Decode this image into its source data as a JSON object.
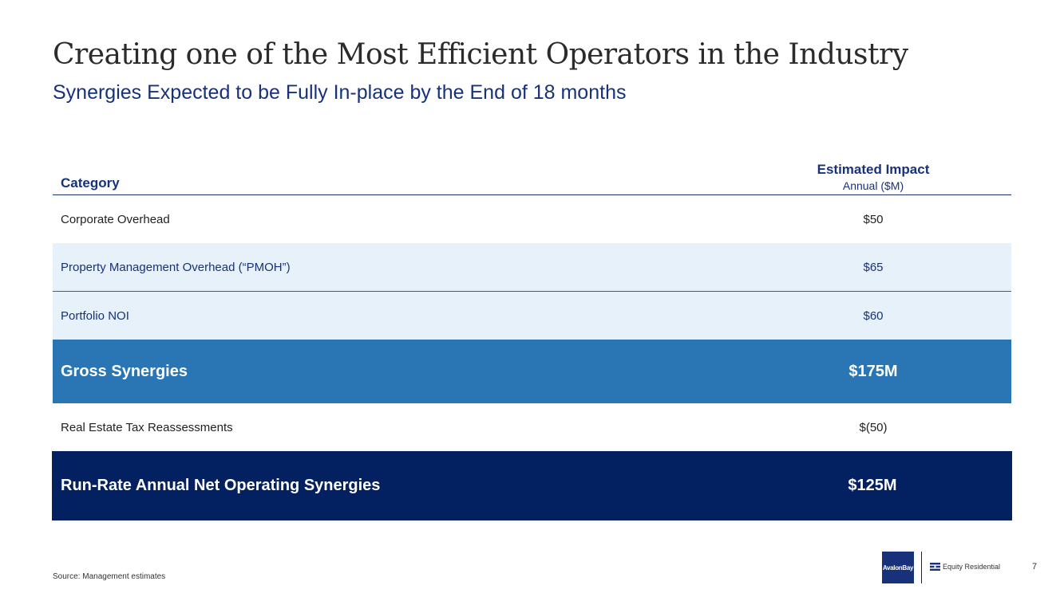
{
  "slide": {
    "title": "Creating one of the Most Efficient Operators in the Industry",
    "subtitle": "Synergies Expected to be Fully In-place by the End of 18 months",
    "source": "Source: Management estimates",
    "page_number": "7"
  },
  "table": {
    "header": {
      "category": "Category",
      "impact_title": "Estimated Impact",
      "impact_sub": "Annual ($M)"
    },
    "rows": [
      {
        "label": "Corporate Overhead",
        "value": "$50"
      },
      {
        "label": "Property Management Overhead (“PMOH”)",
        "value": "$65"
      },
      {
        "label": "Portfolio NOI",
        "value": "$60"
      },
      {
        "label": "Gross Synergies",
        "value": "$175M"
      },
      {
        "label": "Real Estate Tax Reassessments",
        "value": "$(50)"
      },
      {
        "label": "Run-Rate Annual Net Operating Synergies",
        "value": "$125M"
      }
    ]
  },
  "logos": {
    "avalon": "AvalonBay",
    "equity": "Equity Residential"
  },
  "colors": {
    "title_text": "#2b2b2b",
    "navy": "#17327a",
    "light_row": "#e6f1f9",
    "gross_row": "#2a76b5",
    "net_row": "#032061"
  }
}
